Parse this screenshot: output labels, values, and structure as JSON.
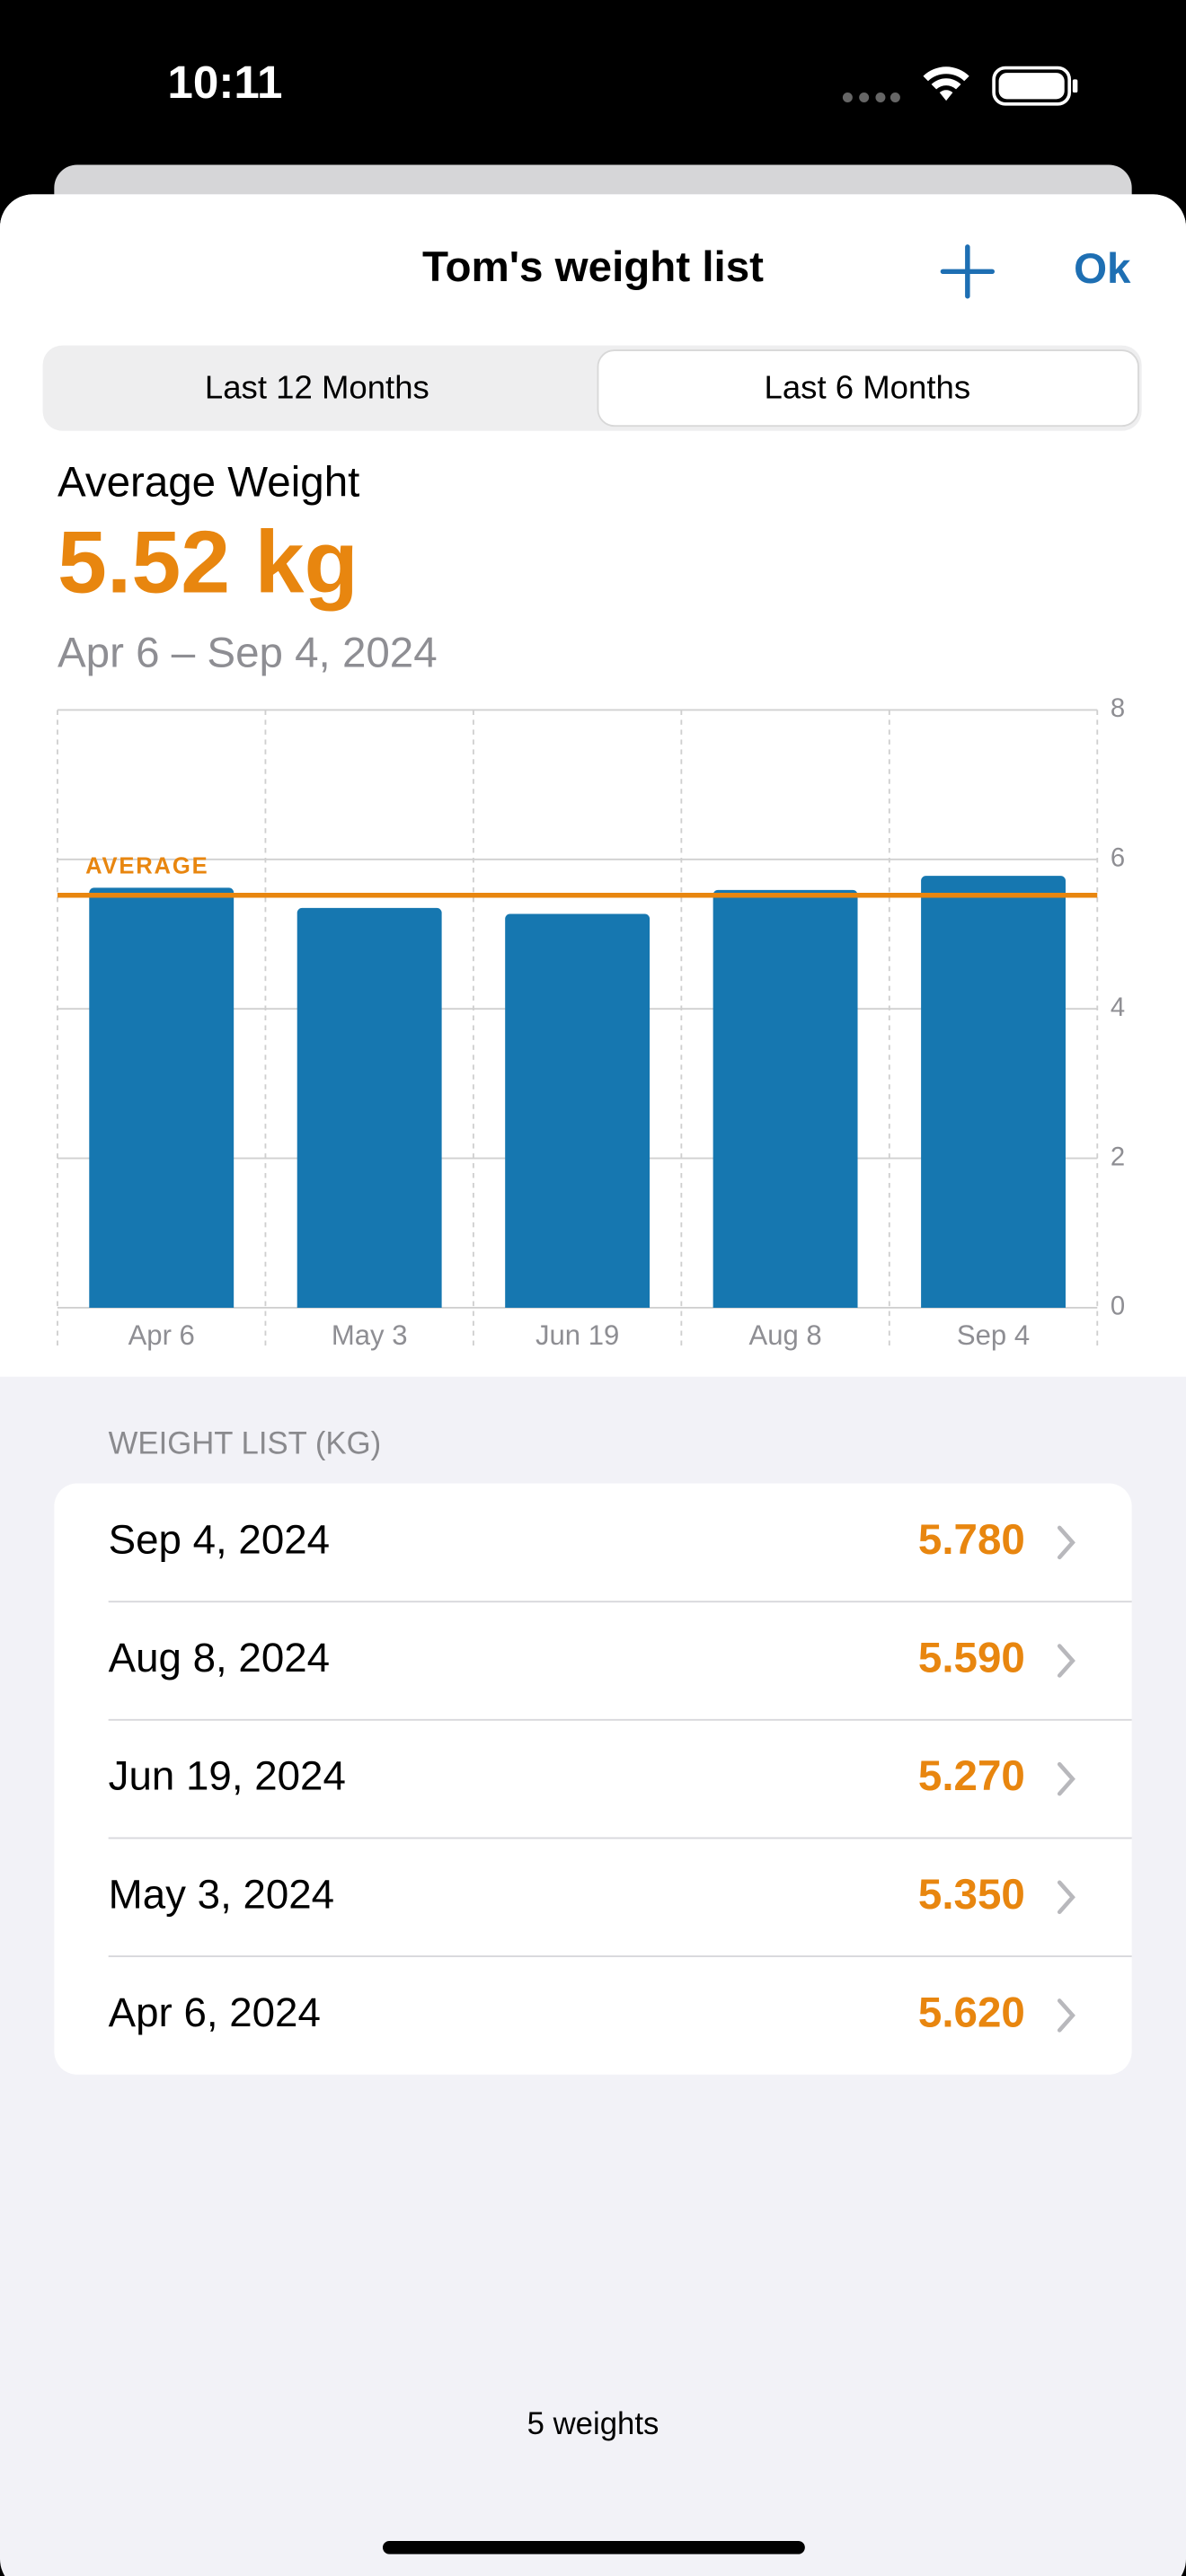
{
  "status_bar": {
    "time": "10:11"
  },
  "nav": {
    "title": "Tom's weight list",
    "done": "Ok"
  },
  "segments": [
    "Last 12 Months",
    "Last 6 Months"
  ],
  "summary": {
    "label": "Average Weight",
    "value": "5.52 kg",
    "range": "Apr 6 – Sep 4, 2024"
  },
  "chart_data": {
    "type": "bar",
    "categories": [
      "Apr 6",
      "May 3",
      "Jun 19",
      "Aug 8",
      "Sep 4"
    ],
    "values": [
      5.62,
      5.35,
      5.27,
      5.59,
      5.78
    ],
    "color": "#1677b0",
    "ylim": [
      0,
      8
    ],
    "yticks": [
      0,
      2,
      4,
      6,
      8
    ],
    "grid": true,
    "average_line": {
      "label": "AVERAGE",
      "value": 5.52,
      "color": "#e8860f"
    }
  },
  "list": {
    "header": "WEIGHT LIST (KG)",
    "rows": [
      [
        "Sep 4, 2024",
        "5.780"
      ],
      [
        "Aug 8, 2024",
        "5.590"
      ],
      [
        "Jun 19, 2024",
        "5.270"
      ],
      [
        "May 3, 2024",
        "5.350"
      ],
      [
        "Apr 6, 2024",
        "5.620"
      ]
    ]
  },
  "footer": "5 weights"
}
